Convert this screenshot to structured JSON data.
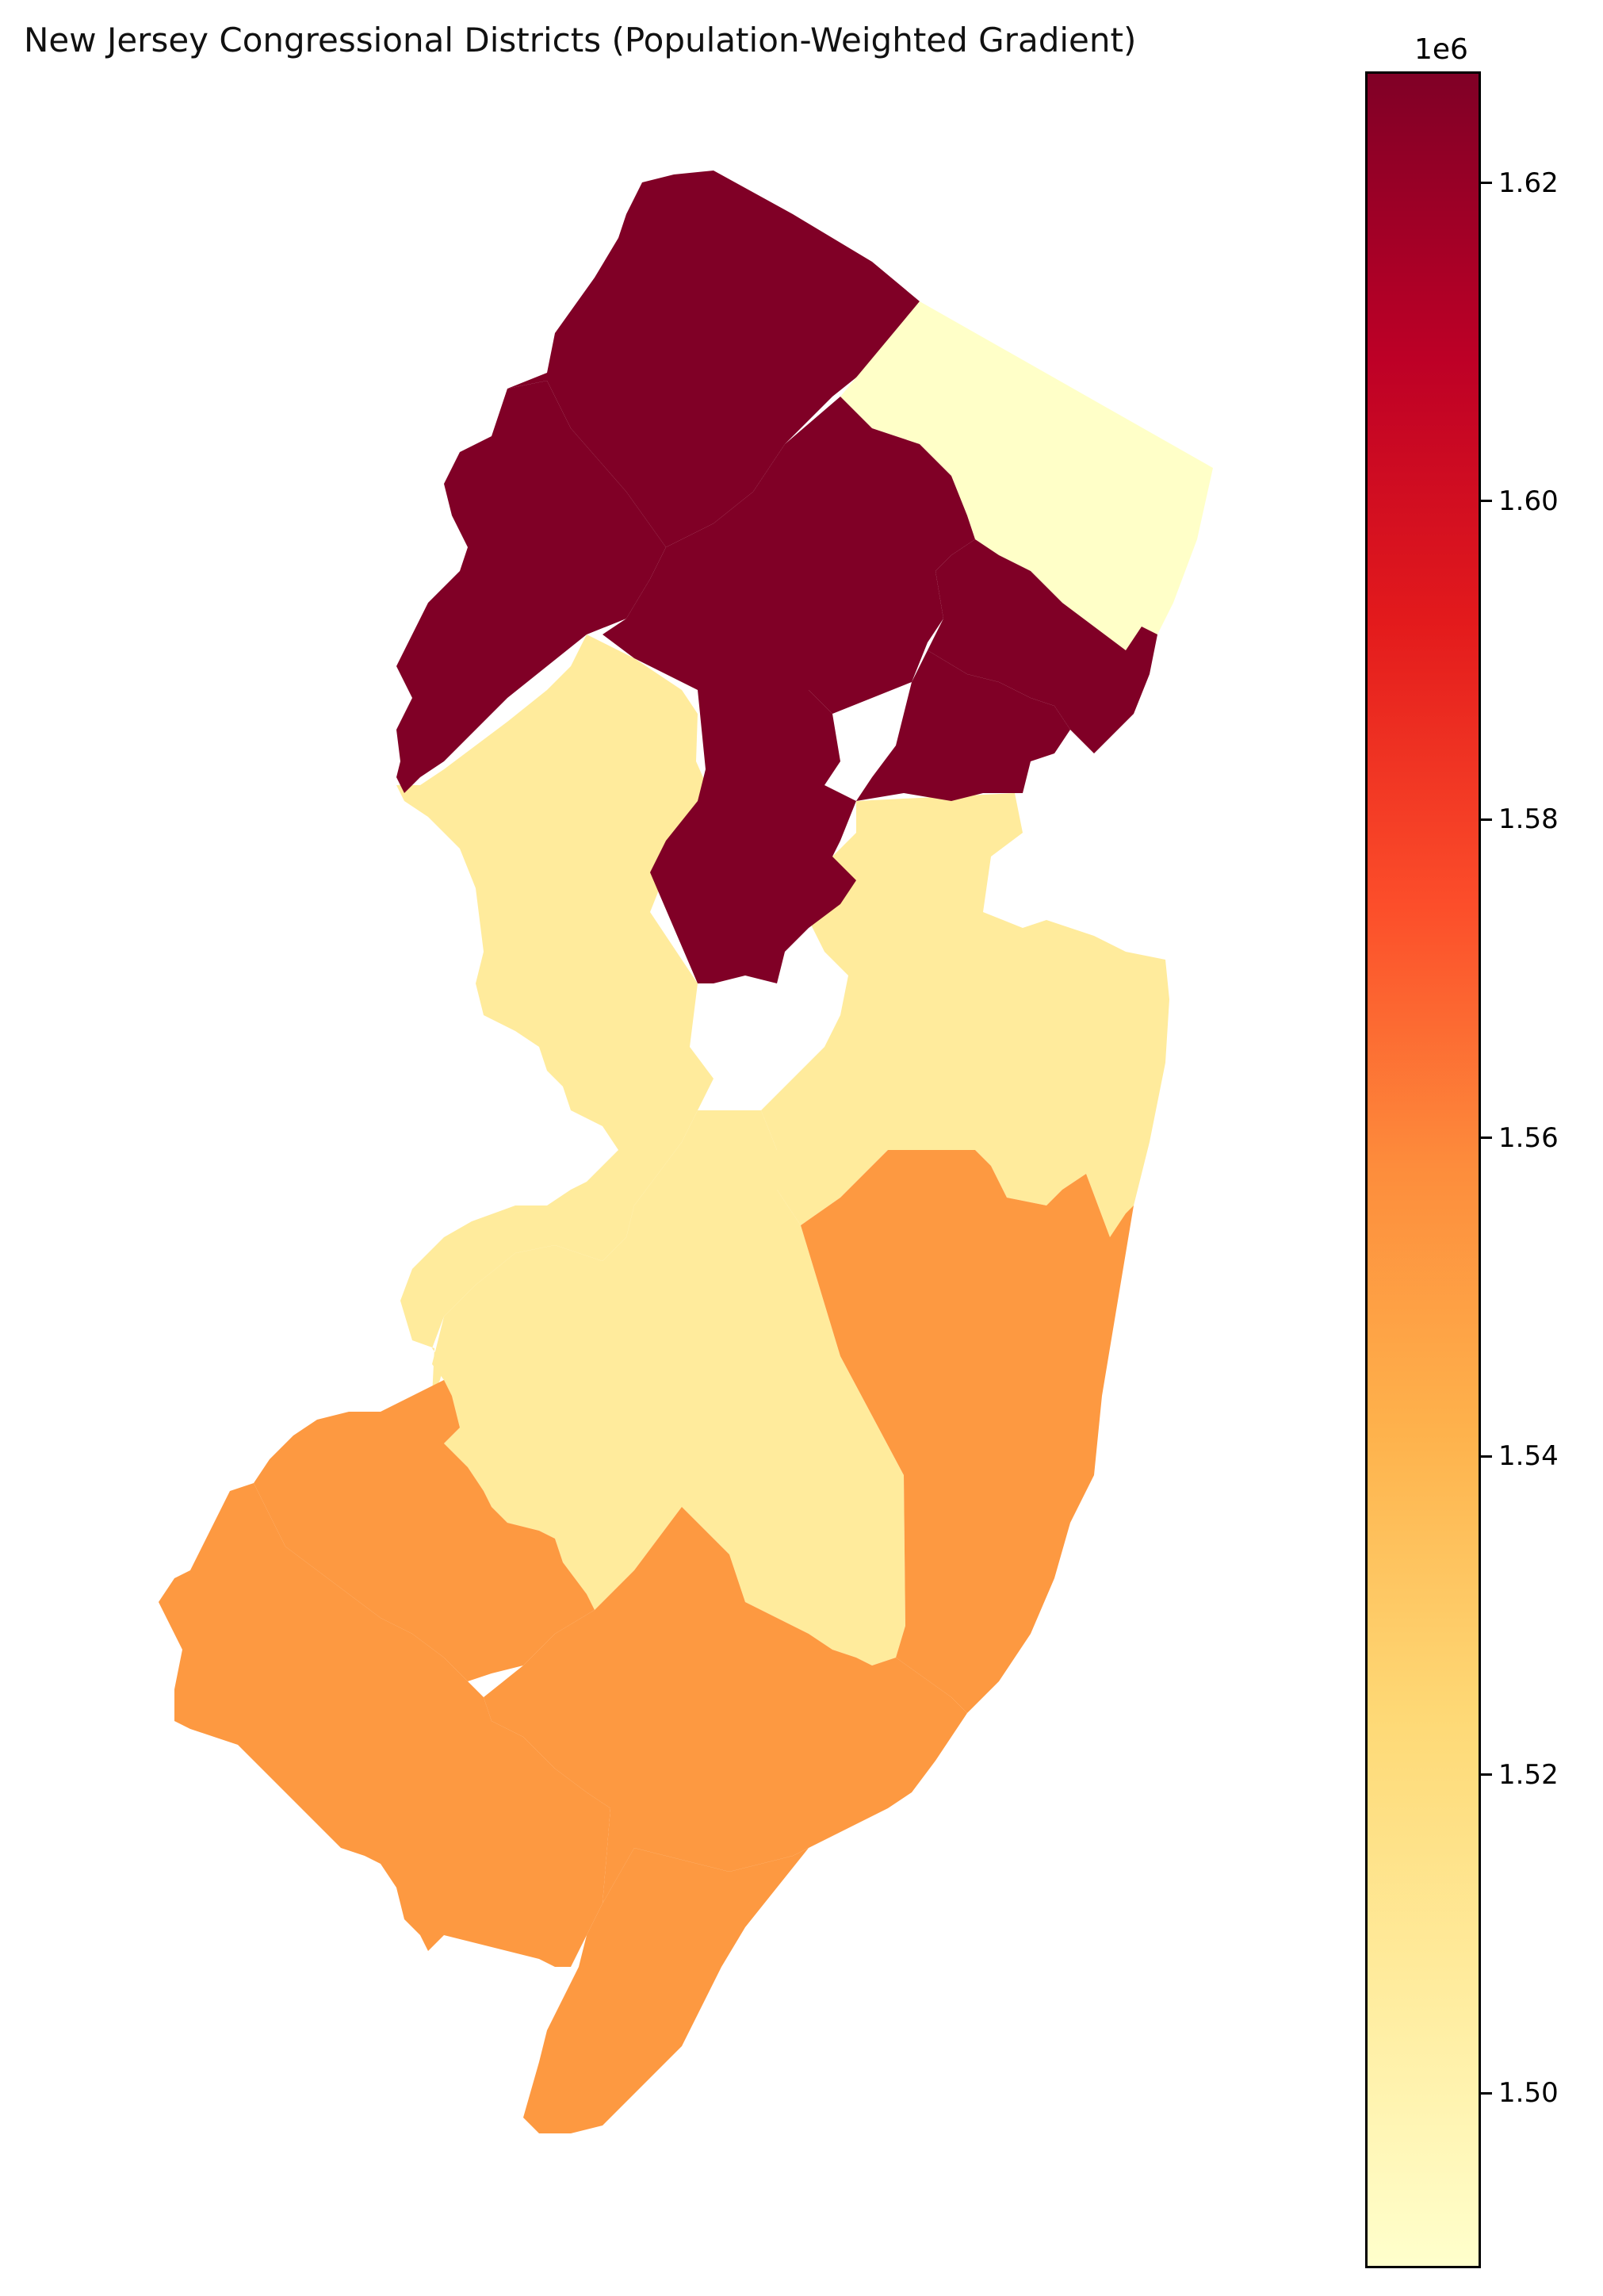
{
  "title": "New Jersey Congressional Districts (Population-Weighted Gradient)",
  "colorbar": {
    "exponent_label": "1e6",
    "ticks": [
      "1.50",
      "1.52",
      "1.54",
      "1.56",
      "1.58",
      "1.60",
      "1.62"
    ],
    "tick_values": [
      1.5,
      1.52,
      1.54,
      1.56,
      1.58,
      1.6,
      1.62
    ],
    "range": [
      1.489,
      1.627
    ],
    "colormap": "YlOrRd"
  },
  "colors": {
    "dark_red": "#800026",
    "red": "#8a0026",
    "pale_yellow": "#ffffc8",
    "light_yellow": "#ffeb9c",
    "orange": "#fd9941"
  },
  "chart_data": {
    "type": "choropleth",
    "title": "New Jersey Congressional Districts (Population-Weighted Gradient)",
    "value_unit_multiplier": "1e6",
    "color_range": [
      1.489,
      1.627
    ],
    "regions": [
      {
        "id": "north-west",
        "value": 1.627
      },
      {
        "id": "north-central",
        "value": 1.627
      },
      {
        "id": "north-east-bergen",
        "value": 1.489
      },
      {
        "id": "essex-area",
        "value": 1.627
      },
      {
        "id": "hudson-area",
        "value": 1.627
      },
      {
        "id": "union-area",
        "value": 1.627
      },
      {
        "id": "somerset-middlesex",
        "value": 1.627
      },
      {
        "id": "hunterdon-mercer",
        "value": 1.515
      },
      {
        "id": "monmouth",
        "value": 1.515
      },
      {
        "id": "burlington",
        "value": 1.515
      },
      {
        "id": "ocean",
        "value": 1.553
      },
      {
        "id": "camden-gloucester",
        "value": 1.553
      },
      {
        "id": "salem-cumberland",
        "value": 1.553
      },
      {
        "id": "atlantic",
        "value": 1.553
      },
      {
        "id": "cape-may",
        "value": 1.553
      }
    ]
  }
}
